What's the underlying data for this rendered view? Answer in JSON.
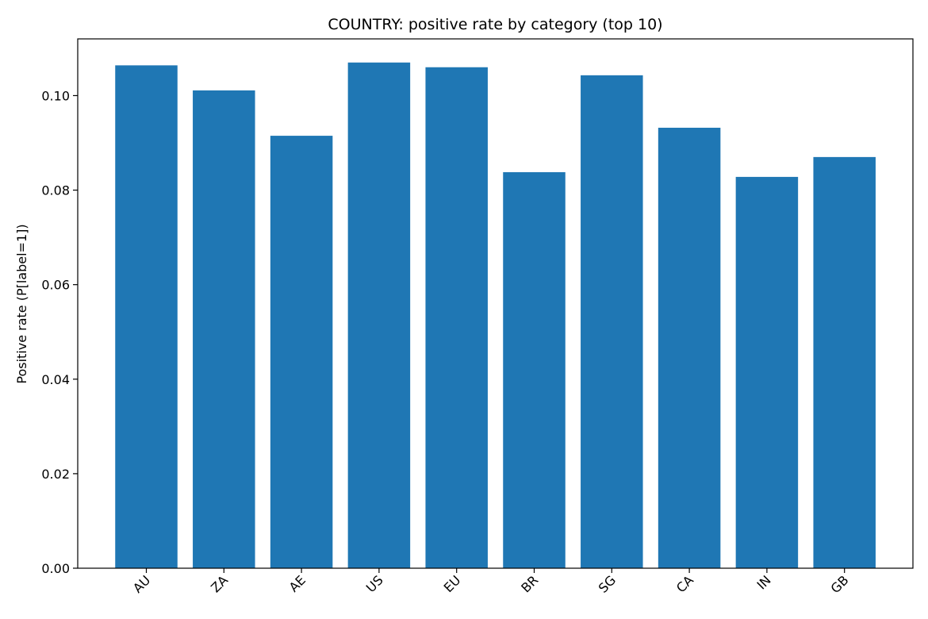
{
  "chart_data": {
    "type": "bar",
    "title": "COUNTRY: positive rate by category (top 10)",
    "xlabel": "",
    "ylabel": "Positive rate (P[label=1])",
    "categories": [
      "AU",
      "ZA",
      "AE",
      "US",
      "EU",
      "BR",
      "SG",
      "CA",
      "IN",
      "GB"
    ],
    "values": [
      0.1064,
      0.1011,
      0.0915,
      0.107,
      0.106,
      0.0838,
      0.1043,
      0.0932,
      0.0828,
      0.087
    ],
    "ylim": [
      0,
      0.112
    ],
    "yticks": [
      0.0,
      0.02,
      0.04,
      0.06,
      0.08,
      0.1
    ],
    "ytick_labels": [
      "0.00",
      "0.02",
      "0.04",
      "0.06",
      "0.08",
      "0.10"
    ],
    "xtick_rotation": 45,
    "grid": false,
    "legend": "none",
    "bar_color": "#1f77b4"
  }
}
